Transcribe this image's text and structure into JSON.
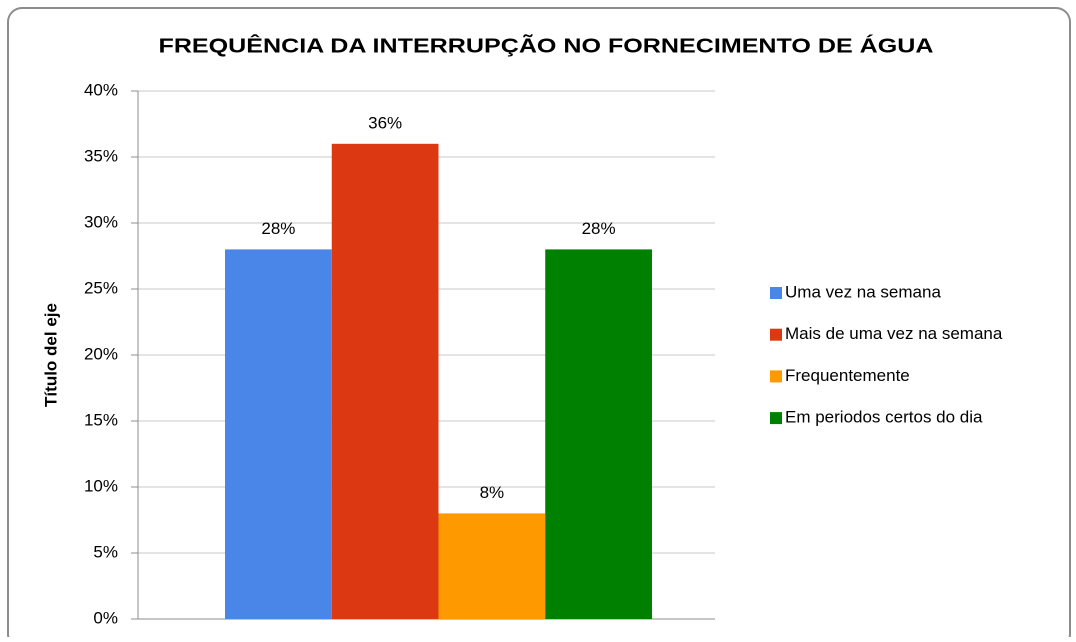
{
  "chart_data": {
    "type": "bar",
    "title": "FREQUÊNCIA DA INTERRUPÇÃO NO FORNECIMENTO DE ÁGUA",
    "y_label": "Título del eje",
    "categories": [
      null
    ],
    "series": [
      {
        "name": "Uma vez na semana",
        "color": "#4a86e8",
        "values": [
          28
        ],
        "value_labels": [
          "28%"
        ]
      },
      {
        "name": "Mais de uma vez na semana",
        "color": "#dc3912",
        "values": [
          36
        ],
        "value_labels": [
          "36%"
        ]
      },
      {
        "name": "Frequentemente",
        "color": "#ff9900",
        "values": [
          8
        ],
        "value_labels": [
          "8%"
        ]
      },
      {
        "name": "Em periodos certos do dia",
        "color": "#008000",
        "values": [
          28
        ],
        "value_labels": [
          "28%"
        ]
      }
    ],
    "ylim": [
      0,
      40
    ],
    "yticks": [
      {
        "value": 0,
        "label": "0%"
      },
      {
        "value": 5,
        "label": "5%"
      },
      {
        "value": 10,
        "label": "10%"
      },
      {
        "value": 15,
        "label": "15%"
      },
      {
        "value": 20,
        "label": "20%"
      },
      {
        "value": 25,
        "label": "25%"
      },
      {
        "value": 30,
        "label": "30%"
      },
      {
        "value": 35,
        "label": "35%"
      },
      {
        "value": 40,
        "label": "40%"
      }
    ],
    "grid": true,
    "legend": "right"
  }
}
